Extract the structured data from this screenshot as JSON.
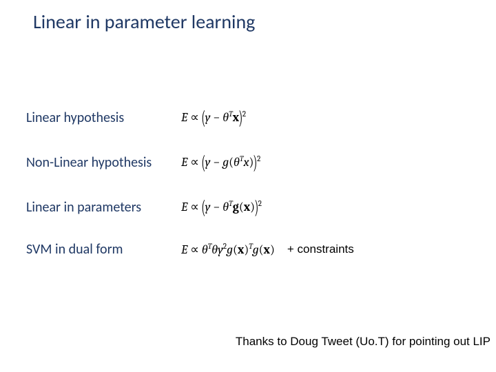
{
  "title": "Linear in parameter learning",
  "rows": {
    "linear_hypothesis": {
      "label": "Linear hypothesis"
    },
    "nonlinear_hypothesis": {
      "label": "Non-Linear hypothesis"
    },
    "linear_in_params": {
      "label": "Linear in parameters"
    },
    "svm_dual": {
      "label": "SVM in dual form",
      "note": "+ constraints"
    }
  },
  "footer": "Thanks to Doug Tweet (Uo.T) for pointing out LIP",
  "colors": {
    "title": "#1f3864",
    "label": "#1f3864",
    "formula": "#000000",
    "background": "#ffffff"
  },
  "fontsizes": {
    "title_pt": 28,
    "label_pt": 20,
    "formula_pt": 18,
    "footer_pt": 17
  }
}
